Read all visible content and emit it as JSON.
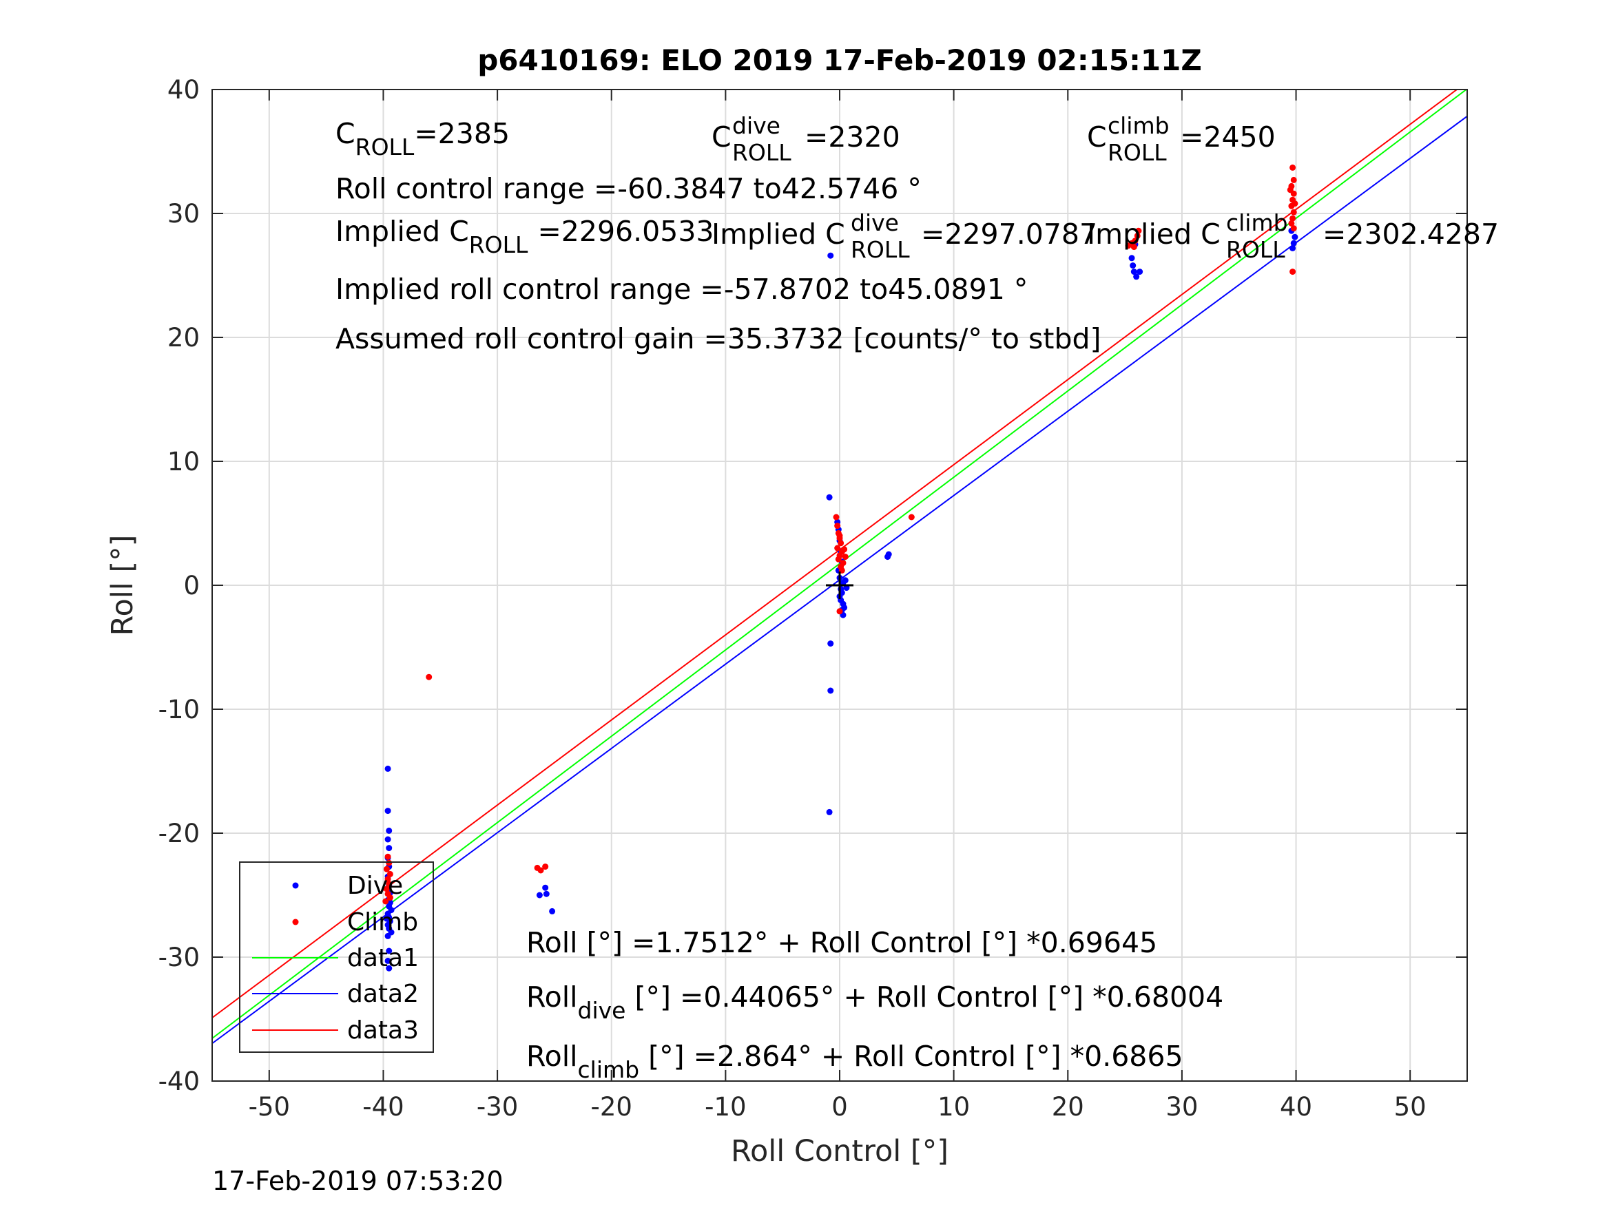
{
  "chart_data": {
    "type": "scatter",
    "title": "p6410169: ELO 2019 17-Feb-2019 02:15:11Z",
    "xlabel": "Roll Control [°]",
    "ylabel": "Roll [°]",
    "xlim": [
      -55,
      55
    ],
    "ylim": [
      -40,
      40
    ],
    "xticks": [
      -50,
      -40,
      -30,
      -20,
      -10,
      0,
      10,
      20,
      30,
      40,
      50
    ],
    "yticks": [
      -40,
      -30,
      -20,
      -10,
      0,
      10,
      20,
      30,
      40
    ],
    "grid": true,
    "legend_position": "bottom-left",
    "legend": [
      "Dive",
      "Climb",
      "data1",
      "data2",
      "data3"
    ],
    "series": [
      {
        "name": "Dive",
        "kind": "points",
        "color": "#0000ff",
        "points": [
          [
            -39.6,
            -14.8
          ],
          [
            -39.6,
            -18.2
          ],
          [
            -39.5,
            -19.8
          ],
          [
            -39.6,
            -20.5
          ],
          [
            -39.5,
            -21.2
          ],
          [
            -39.6,
            -22.0
          ],
          [
            -39.5,
            -22.7
          ],
          [
            -39.6,
            -23.5
          ],
          [
            -39.5,
            -24.2
          ],
          [
            -39.4,
            -24.8
          ],
          [
            -39.6,
            -25.4
          ],
          [
            -39.5,
            -25.9
          ],
          [
            -39.3,
            -26.2
          ],
          [
            -39.6,
            -26.5
          ],
          [
            -39.5,
            -26.8
          ],
          [
            -39.4,
            -27.1
          ],
          [
            -39.6,
            -27.4
          ],
          [
            -39.5,
            -27.7
          ],
          [
            -39.3,
            -28.0
          ],
          [
            -39.6,
            -28.3
          ],
          [
            -39.5,
            -29.5
          ],
          [
            -39.6,
            -30.3
          ],
          [
            -39.5,
            -30.9
          ],
          [
            -39.4,
            -25.6
          ],
          [
            -39.7,
            -26.9
          ],
          [
            -26.3,
            -25.0
          ],
          [
            -25.8,
            -24.4
          ],
          [
            -25.7,
            -24.9
          ],
          [
            -25.2,
            -26.3
          ],
          [
            -0.8,
            26.6
          ],
          [
            -0.9,
            7.1
          ],
          [
            -0.8,
            -4.7
          ],
          [
            -0.8,
            -8.5
          ],
          [
            -0.9,
            -18.3
          ],
          [
            -0.2,
            5.1
          ],
          [
            -0.1,
            4.5
          ],
          [
            0.0,
            3.6
          ],
          [
            0.1,
            2.7
          ],
          [
            0.2,
            1.9
          ],
          [
            -0.1,
            1.2
          ],
          [
            0.0,
            0.6
          ],
          [
            0.3,
            0.2
          ],
          [
            0.1,
            -0.3
          ],
          [
            0.2,
            -0.6
          ],
          [
            0.0,
            -0.9
          ],
          [
            0.1,
            -1.2
          ],
          [
            0.3,
            -1.5
          ],
          [
            0.4,
            -1.8
          ],
          [
            0.2,
            -2.0
          ],
          [
            0.3,
            -2.4
          ],
          [
            0.5,
            0.4
          ],
          [
            0.6,
            -0.2
          ],
          [
            4.2,
            2.3
          ],
          [
            4.3,
            2.5
          ],
          [
            25.6,
            26.4
          ],
          [
            25.7,
            25.8
          ],
          [
            25.8,
            25.3
          ],
          [
            26.0,
            24.9
          ],
          [
            26.3,
            25.3
          ],
          [
            25.9,
            27.5
          ],
          [
            39.7,
            27.2
          ],
          [
            39.8,
            27.6
          ],
          [
            39.9,
            28.1
          ],
          [
            39.6,
            28.6
          ]
        ]
      },
      {
        "name": "Climb",
        "kind": "points",
        "color": "#ff0000",
        "points": [
          [
            -36.0,
            -7.4
          ],
          [
            -39.6,
            -21.9
          ],
          [
            -39.5,
            -22.4
          ],
          [
            -39.7,
            -22.9
          ],
          [
            -39.4,
            -23.3
          ],
          [
            -39.6,
            -23.7
          ],
          [
            -39.5,
            -24.1
          ],
          [
            -39.7,
            -24.5
          ],
          [
            -39.6,
            -24.9
          ],
          [
            -39.4,
            -25.2
          ],
          [
            -39.8,
            -25.5
          ],
          [
            -26.5,
            -22.8
          ],
          [
            -26.2,
            -23.0
          ],
          [
            -25.8,
            -22.7
          ],
          [
            -0.3,
            5.5
          ],
          [
            -0.2,
            4.8
          ],
          [
            -0.1,
            4.2
          ],
          [
            0.0,
            3.8
          ],
          [
            0.1,
            3.4
          ],
          [
            -0.2,
            3.0
          ],
          [
            0.2,
            2.7
          ],
          [
            0.0,
            2.4
          ],
          [
            -0.1,
            2.1
          ],
          [
            0.3,
            1.8
          ],
          [
            0.1,
            1.5
          ],
          [
            0.4,
            2.9
          ],
          [
            0.5,
            2.3
          ],
          [
            0.2,
            1.2
          ],
          [
            0.0,
            4.0
          ],
          [
            0.0,
            -2.1
          ],
          [
            6.3,
            5.5
          ],
          [
            25.3,
            27.4
          ],
          [
            25.6,
            27.6
          ],
          [
            25.9,
            27.8
          ],
          [
            26.1,
            28.2
          ],
          [
            26.2,
            28.6
          ],
          [
            25.8,
            27.3
          ],
          [
            39.7,
            33.7
          ],
          [
            39.8,
            32.7
          ],
          [
            39.6,
            32.2
          ],
          [
            39.8,
            31.6
          ],
          [
            39.7,
            31.1
          ],
          [
            39.6,
            30.6
          ],
          [
            39.8,
            30.1
          ],
          [
            39.7,
            29.6
          ],
          [
            39.6,
            29.2
          ],
          [
            39.8,
            28.8
          ],
          [
            39.7,
            25.3
          ],
          [
            39.9,
            30.8
          ],
          [
            39.5,
            31.9
          ]
        ]
      },
      {
        "name": "data1",
        "kind": "line",
        "color": "#00ff00",
        "intercept": 1.7512,
        "slope": 0.69645
      },
      {
        "name": "data2",
        "kind": "line",
        "color": "#0000ff",
        "intercept": 0.44065,
        "slope": 0.68004
      },
      {
        "name": "data3",
        "kind": "line",
        "color": "#ff0000",
        "intercept": 2.864,
        "slope": 0.6865
      }
    ],
    "marker": {
      "label": "+",
      "x": 0,
      "y": 0
    },
    "annotations": {
      "c_roll": {
        "base": "C",
        "sub": "ROLL",
        "value": "=2385"
      },
      "c_roll_dive": {
        "base": "C",
        "sup": "dive",
        "sub": "ROLL",
        "value": "=2320"
      },
      "c_roll_climb": {
        "base": "C",
        "sup": "climb",
        "sub": "ROLL",
        "value": "=2450"
      },
      "range": "Roll control range =-60.3847 to42.5746 °",
      "implied_c": {
        "base": "Implied C",
        "sub": "ROLL",
        "value": "=2296.0533"
      },
      "implied_c_dive": {
        "base": "Implied C",
        "sup": "dive",
        "sub": "ROLL",
        "value": "=2297.0787"
      },
      "implied_c_climb": {
        "base": "Implied C",
        "sup": "climb",
        "sub": "ROLL",
        "value": "=2302.4287"
      },
      "implied_range": "Implied roll control range =-57.8702 to45.0891 °",
      "gain": "Assumed roll control gain =35.3732 [counts/° to stbd]",
      "fit_all": "Roll [°] =1.7512° + Roll Control [°] *0.69645",
      "fit_dive": {
        "base": "Roll",
        "sub": "dive",
        "rest": " [°] =0.44065° + Roll Control [°] *0.68004"
      },
      "fit_climb": {
        "base": "Roll",
        "sub": "climb",
        "rest": " [°] =2.864° + Roll Control [°] *0.6865"
      }
    }
  },
  "footer_timestamp": "17-Feb-2019 07:53:20"
}
